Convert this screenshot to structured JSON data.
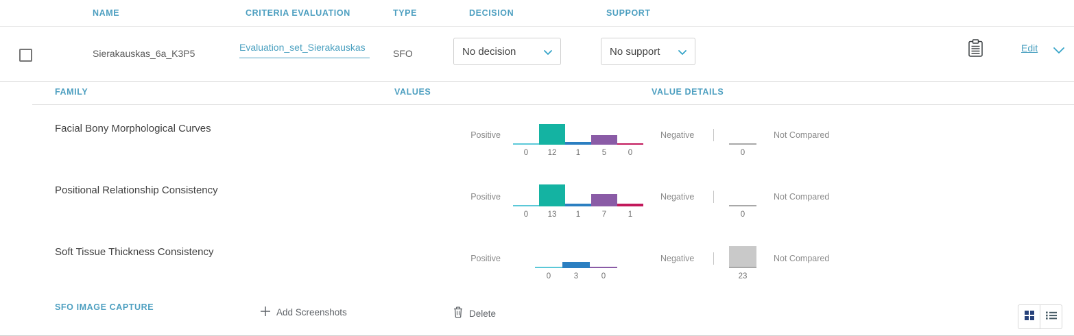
{
  "colors": {
    "accent_teal": "#4d9fc0",
    "bar_cyan": "#5bc8d8",
    "bar_teal": "#14b3a2",
    "bar_blue": "#2b7fc1",
    "bar_purple": "#8a5ba6",
    "bar_magenta": "#c2185b",
    "not_compared_gray": "#c9c9c9"
  },
  "header": {
    "columns": [
      "NAME",
      "CRITERIA EVALUATION",
      "TYPE",
      "DECISION",
      "SUPPORT"
    ]
  },
  "record": {
    "name": "Sierakauskas_6a_K3P5",
    "criteria_evaluation": "Evaluation_set_Sierakauskas",
    "type": "SFO",
    "decision": "No decision",
    "support": "No support",
    "edit_label": "Edit"
  },
  "subtable": {
    "family_header": "FAMILY",
    "values_header": "VALUES",
    "value_details_header": "VALUE DETAILS",
    "positive_label": "Positive",
    "negative_label": "Negative",
    "not_compared_label": "Not Compared",
    "separator": "|"
  },
  "families": [
    {
      "name": "Facial Bony Morphological Curves",
      "bins": [
        {
          "value": 0,
          "color": "#5bc8d8"
        },
        {
          "value": 12,
          "color": "#14b3a2"
        },
        {
          "value": 1,
          "color": "#2b7fc1"
        },
        {
          "value": 5,
          "color": "#8a5ba6"
        },
        {
          "value": 0,
          "color": "#c2185b"
        }
      ],
      "not_compared_value": 0
    },
    {
      "name": "Positional Relationship Consistency",
      "bins": [
        {
          "value": 0,
          "color": "#5bc8d8"
        },
        {
          "value": 13,
          "color": "#14b3a2"
        },
        {
          "value": 1,
          "color": "#2b7fc1"
        },
        {
          "value": 7,
          "color": "#8a5ba6"
        },
        {
          "value": 1,
          "color": "#c2185b"
        }
      ],
      "not_compared_value": 0
    },
    {
      "name": "Soft Tissue Thickness Consistency",
      "bins": [
        {
          "value": 0,
          "color": "#5bc8d8"
        },
        {
          "value": 3,
          "color": "#2b7fc1"
        },
        {
          "value": 0,
          "color": "#8a5ba6"
        }
      ],
      "not_compared_value": 23
    }
  ],
  "footer": {
    "section_label": "SFO IMAGE CAPTURE",
    "add_screenshots_label": "Add Screenshots",
    "delete_label": "Delete"
  }
}
